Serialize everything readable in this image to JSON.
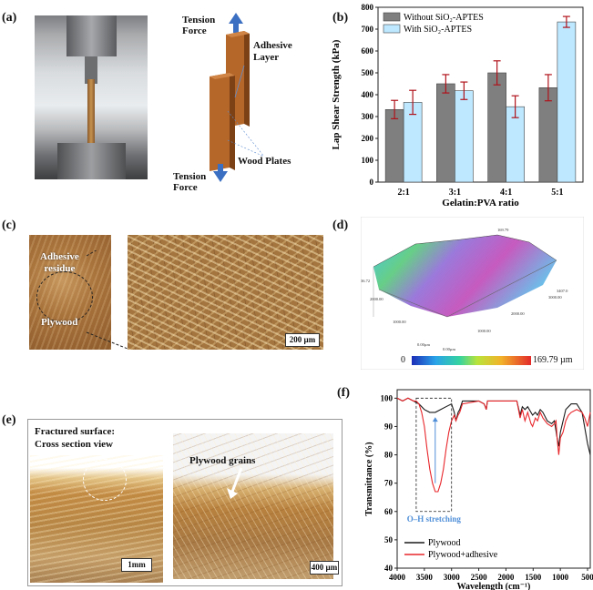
{
  "panels": {
    "a": {
      "label": "(a)",
      "tension_top": "Tension\nForce",
      "tension_bottom": "Tension\nForce",
      "adhesive_layer": "Adhesive\nLayer",
      "wood_plates": "Wood Plates"
    },
    "b": {
      "label": "(b)"
    },
    "c": {
      "label": "(c)",
      "adhesive_residue": "Adhesive\nresidue",
      "plywood": "Plywood",
      "scale": "200 µm"
    },
    "d": {
      "label": "(d)",
      "colorbar_min": "0",
      "colorbar_max": "169.79 µm",
      "axis_ticks": [
        "2000.00",
        "1000.00",
        "0.00µm",
        "0.00µm",
        "1000.00",
        "2000.00",
        "3000.00",
        "3407.0",
        "169.79",
        "36.72"
      ]
    },
    "e": {
      "label": "(e)",
      "title_line1": "Fractured surface:",
      "title_line2": "Cross section view",
      "plywood_grains": "Plywood grains",
      "scale_left": "1mm",
      "scale_right": "400 µm"
    },
    "f": {
      "label": "(f)",
      "annotation": "O–H stretching"
    }
  },
  "colors": {
    "without": "#7f7f7f",
    "with": "#bde8ff",
    "errorbar": "#b0121b",
    "plywood_line": "#1a1a1a",
    "adhesive_line": "#e8262b",
    "annotation": "#4f8fd8"
  },
  "chart_data": [
    {
      "id": "b",
      "type": "bar",
      "categories": [
        "2:1",
        "3:1",
        "4:1",
        "5:1"
      ],
      "series": [
        {
          "name": "Without SiO₂-APTES",
          "values": [
            332,
            450,
            500,
            432
          ],
          "errors": [
            42,
            42,
            55,
            60
          ]
        },
        {
          "name": "With SiO₂-APTES",
          "values": [
            365,
            418,
            345,
            733
          ],
          "errors": [
            55,
            40,
            50,
            25
          ]
        }
      ],
      "xlabel": "Gelatin:PVA ratio",
      "ylabel": "Lap Shear Strength (kPa)",
      "ylim": [
        0,
        800
      ],
      "yticks": [
        0,
        100,
        200,
        300,
        400,
        500,
        600,
        700,
        800
      ],
      "legend": "top-left"
    },
    {
      "id": "f",
      "type": "line",
      "xlabel": "Wavelength (cm⁻¹)",
      "ylabel": "Transmittance (%)",
      "xlim": [
        4000,
        450
      ],
      "ylim": [
        40,
        103
      ],
      "xticks": [
        4000,
        3500,
        3000,
        2500,
        2000,
        1500,
        1000,
        500
      ],
      "yticks": [
        40,
        50,
        60,
        70,
        80,
        90,
        100
      ],
      "legend": "bottom-left",
      "series": [
        {
          "name": "Plywood",
          "x": [
            4000,
            3900,
            3800,
            3700,
            3600,
            3500,
            3400,
            3300,
            3200,
            3100,
            3000,
            2950,
            2920,
            2880,
            2850,
            2800,
            2500,
            2400,
            2360,
            2340,
            2200,
            2100,
            2000,
            1800,
            1740,
            1700,
            1650,
            1600,
            1510,
            1460,
            1420,
            1370,
            1320,
            1240,
            1160,
            1110,
            1060,
            1030,
            1000,
            900,
            800,
            700,
            600,
            500,
            450
          ],
          "y": [
            100,
            99,
            100,
            99,
            98,
            96,
            95,
            95,
            96,
            97,
            98,
            95,
            92,
            95,
            96,
            99,
            99,
            98,
            96,
            99,
            99,
            99,
            99,
            99,
            94,
            97,
            96,
            97,
            94,
            95,
            94,
            96,
            95,
            92,
            91,
            92,
            86,
            83,
            88,
            96,
            98,
            98,
            95,
            84,
            80
          ]
        },
        {
          "name": "Plywood+adhesive",
          "x": [
            4000,
            3900,
            3800,
            3700,
            3650,
            3600,
            3550,
            3500,
            3450,
            3400,
            3350,
            3300,
            3250,
            3200,
            3150,
            3100,
            3050,
            3000,
            2950,
            2920,
            2880,
            2850,
            2800,
            2500,
            2400,
            2360,
            2340,
            2200,
            2100,
            2000,
            1800,
            1740,
            1700,
            1650,
            1600,
            1540,
            1510,
            1460,
            1420,
            1370,
            1320,
            1240,
            1160,
            1110,
            1080,
            1060,
            1030,
            1000,
            950,
            900,
            850,
            800,
            700,
            600,
            550,
            500,
            450
          ],
          "y": [
            100,
            99,
            100,
            99,
            99,
            98,
            95,
            90,
            82,
            75,
            70,
            67,
            67,
            70,
            75,
            82,
            88,
            92,
            94,
            92,
            94,
            95,
            98,
            99,
            98,
            96,
            99,
            99,
            99,
            99,
            99,
            93,
            96,
            92,
            95,
            91,
            90,
            93,
            92,
            95,
            93,
            91,
            90,
            91,
            92,
            86,
            80,
            86,
            88,
            92,
            94,
            95,
            96,
            95,
            93,
            90,
            95
          ]
        }
      ]
    }
  ]
}
